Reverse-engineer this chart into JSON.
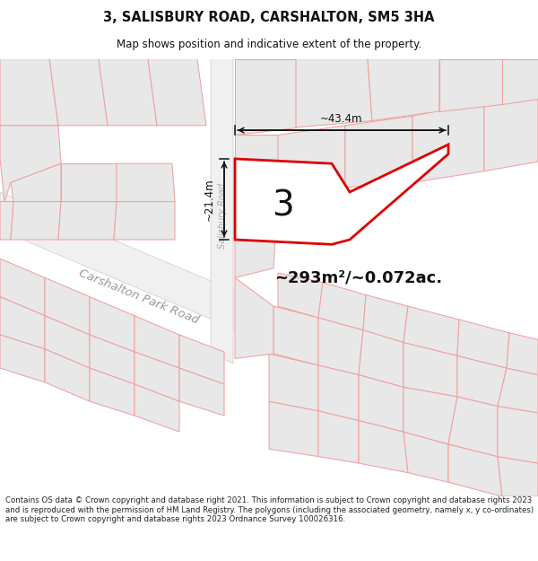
{
  "title_line1": "3, SALISBURY ROAD, CARSHALTON, SM5 3HA",
  "title_line2": "Map shows position and indicative extent of the property.",
  "area_text": "~293m²/~0.072ac.",
  "label_number": "3",
  "dim_left": "~21.4m",
  "dim_bottom": "~43.4m",
  "road_label": "Carshalton Park Road",
  "road_label2": "Salisbury Road",
  "footer": "Contains OS data © Crown copyright and database right 2021. This information is subject to Crown copyright and database rights 2023 and is reproduced with the permission of HM Land Registry. The polygons (including the associated geometry, namely x, y co-ordinates) are subject to Crown copyright and database rights 2023 Ordnance Survey 100026316.",
  "bg_color": "#ffffff",
  "map_bg": "#ffffff",
  "parcel_fill": "#e8e8e8",
  "parcel_edge": "#f0a0a0",
  "road_fill": "#e0e0e0",
  "property_fill": "#ffffff",
  "property_edge": "#dd0000",
  "annotation_color": "#111111",
  "title_color": "#111111",
  "footer_color": "#222222",
  "road_label_color": "#aaaaaa",
  "dim_line_color": "#111111"
}
